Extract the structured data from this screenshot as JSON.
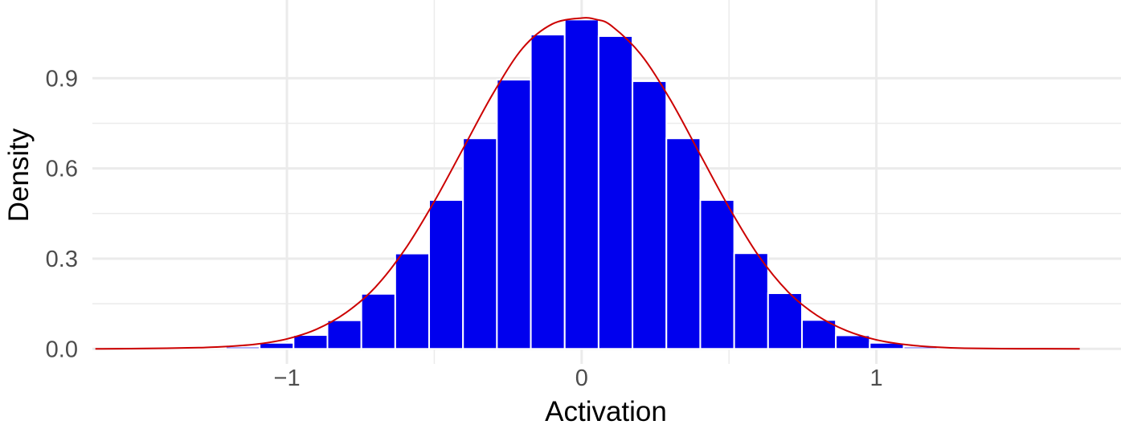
{
  "chart_data": {
    "type": "bar",
    "title": "",
    "xlabel": "Activation",
    "ylabel": "Density",
    "xlim": [
      -1.66,
      1.83
    ],
    "ylim": [
      -0.05,
      1.16
    ],
    "xticks": [
      -1,
      0,
      1
    ],
    "xtick_labels": [
      "−1",
      "0",
      "1"
    ],
    "yticks": [
      0.0,
      0.3,
      0.6,
      0.9
    ],
    "ytick_labels": [
      "0.0",
      "0.3",
      "0.6",
      "0.9"
    ],
    "grid": true,
    "bin_width": 0.115,
    "bins": {
      "centers": [
        -1.61,
        -1.495,
        -1.38,
        -1.265,
        -1.15,
        -1.035,
        -0.92,
        -0.805,
        -0.69,
        -0.575,
        -0.46,
        -0.345,
        -0.23,
        -0.115,
        0.0,
        0.115,
        0.23,
        0.345,
        0.46,
        0.575,
        0.69,
        0.805,
        0.92,
        1.035,
        1.15,
        1.265,
        1.38,
        1.495,
        1.61,
        1.725
      ],
      "values": [
        0.0,
        0.0005,
        0.001,
        0.002,
        0.007,
        0.02,
        0.046,
        0.095,
        0.183,
        0.317,
        0.495,
        0.7,
        0.895,
        1.045,
        1.095,
        1.04,
        0.89,
        0.7,
        0.495,
        0.318,
        0.185,
        0.096,
        0.045,
        0.02,
        0.007,
        0.002,
        0.001,
        0.0005,
        0.0,
        0.0
      ]
    },
    "density_curve": {
      "x": [
        -1.65,
        -1.5,
        -1.3,
        -1.2,
        -1.1,
        -1.0,
        -0.9,
        -0.8,
        -0.7,
        -0.6,
        -0.5,
        -0.4,
        -0.3,
        -0.2,
        -0.1,
        0.0,
        0.05,
        0.1,
        0.2,
        0.3,
        0.4,
        0.5,
        0.6,
        0.7,
        0.8,
        0.9,
        1.0,
        1.1,
        1.2,
        1.3,
        1.5,
        1.69
      ],
      "y": [
        0.0,
        0.001,
        0.004,
        0.008,
        0.016,
        0.033,
        0.065,
        0.12,
        0.205,
        0.33,
        0.49,
        0.67,
        0.85,
        1.0,
        1.08,
        1.1,
        1.095,
        1.075,
        0.98,
        0.83,
        0.65,
        0.47,
        0.31,
        0.19,
        0.11,
        0.06,
        0.03,
        0.014,
        0.006,
        0.002,
        0.0005,
        0.0
      ]
    },
    "colors": {
      "bars": "#0000ee",
      "bar_edges": "#ffffff",
      "curve": "#cc0000",
      "grid": "#ebebeb",
      "tick_text": "#4d4d4d",
      "title_text": "#000000"
    }
  }
}
